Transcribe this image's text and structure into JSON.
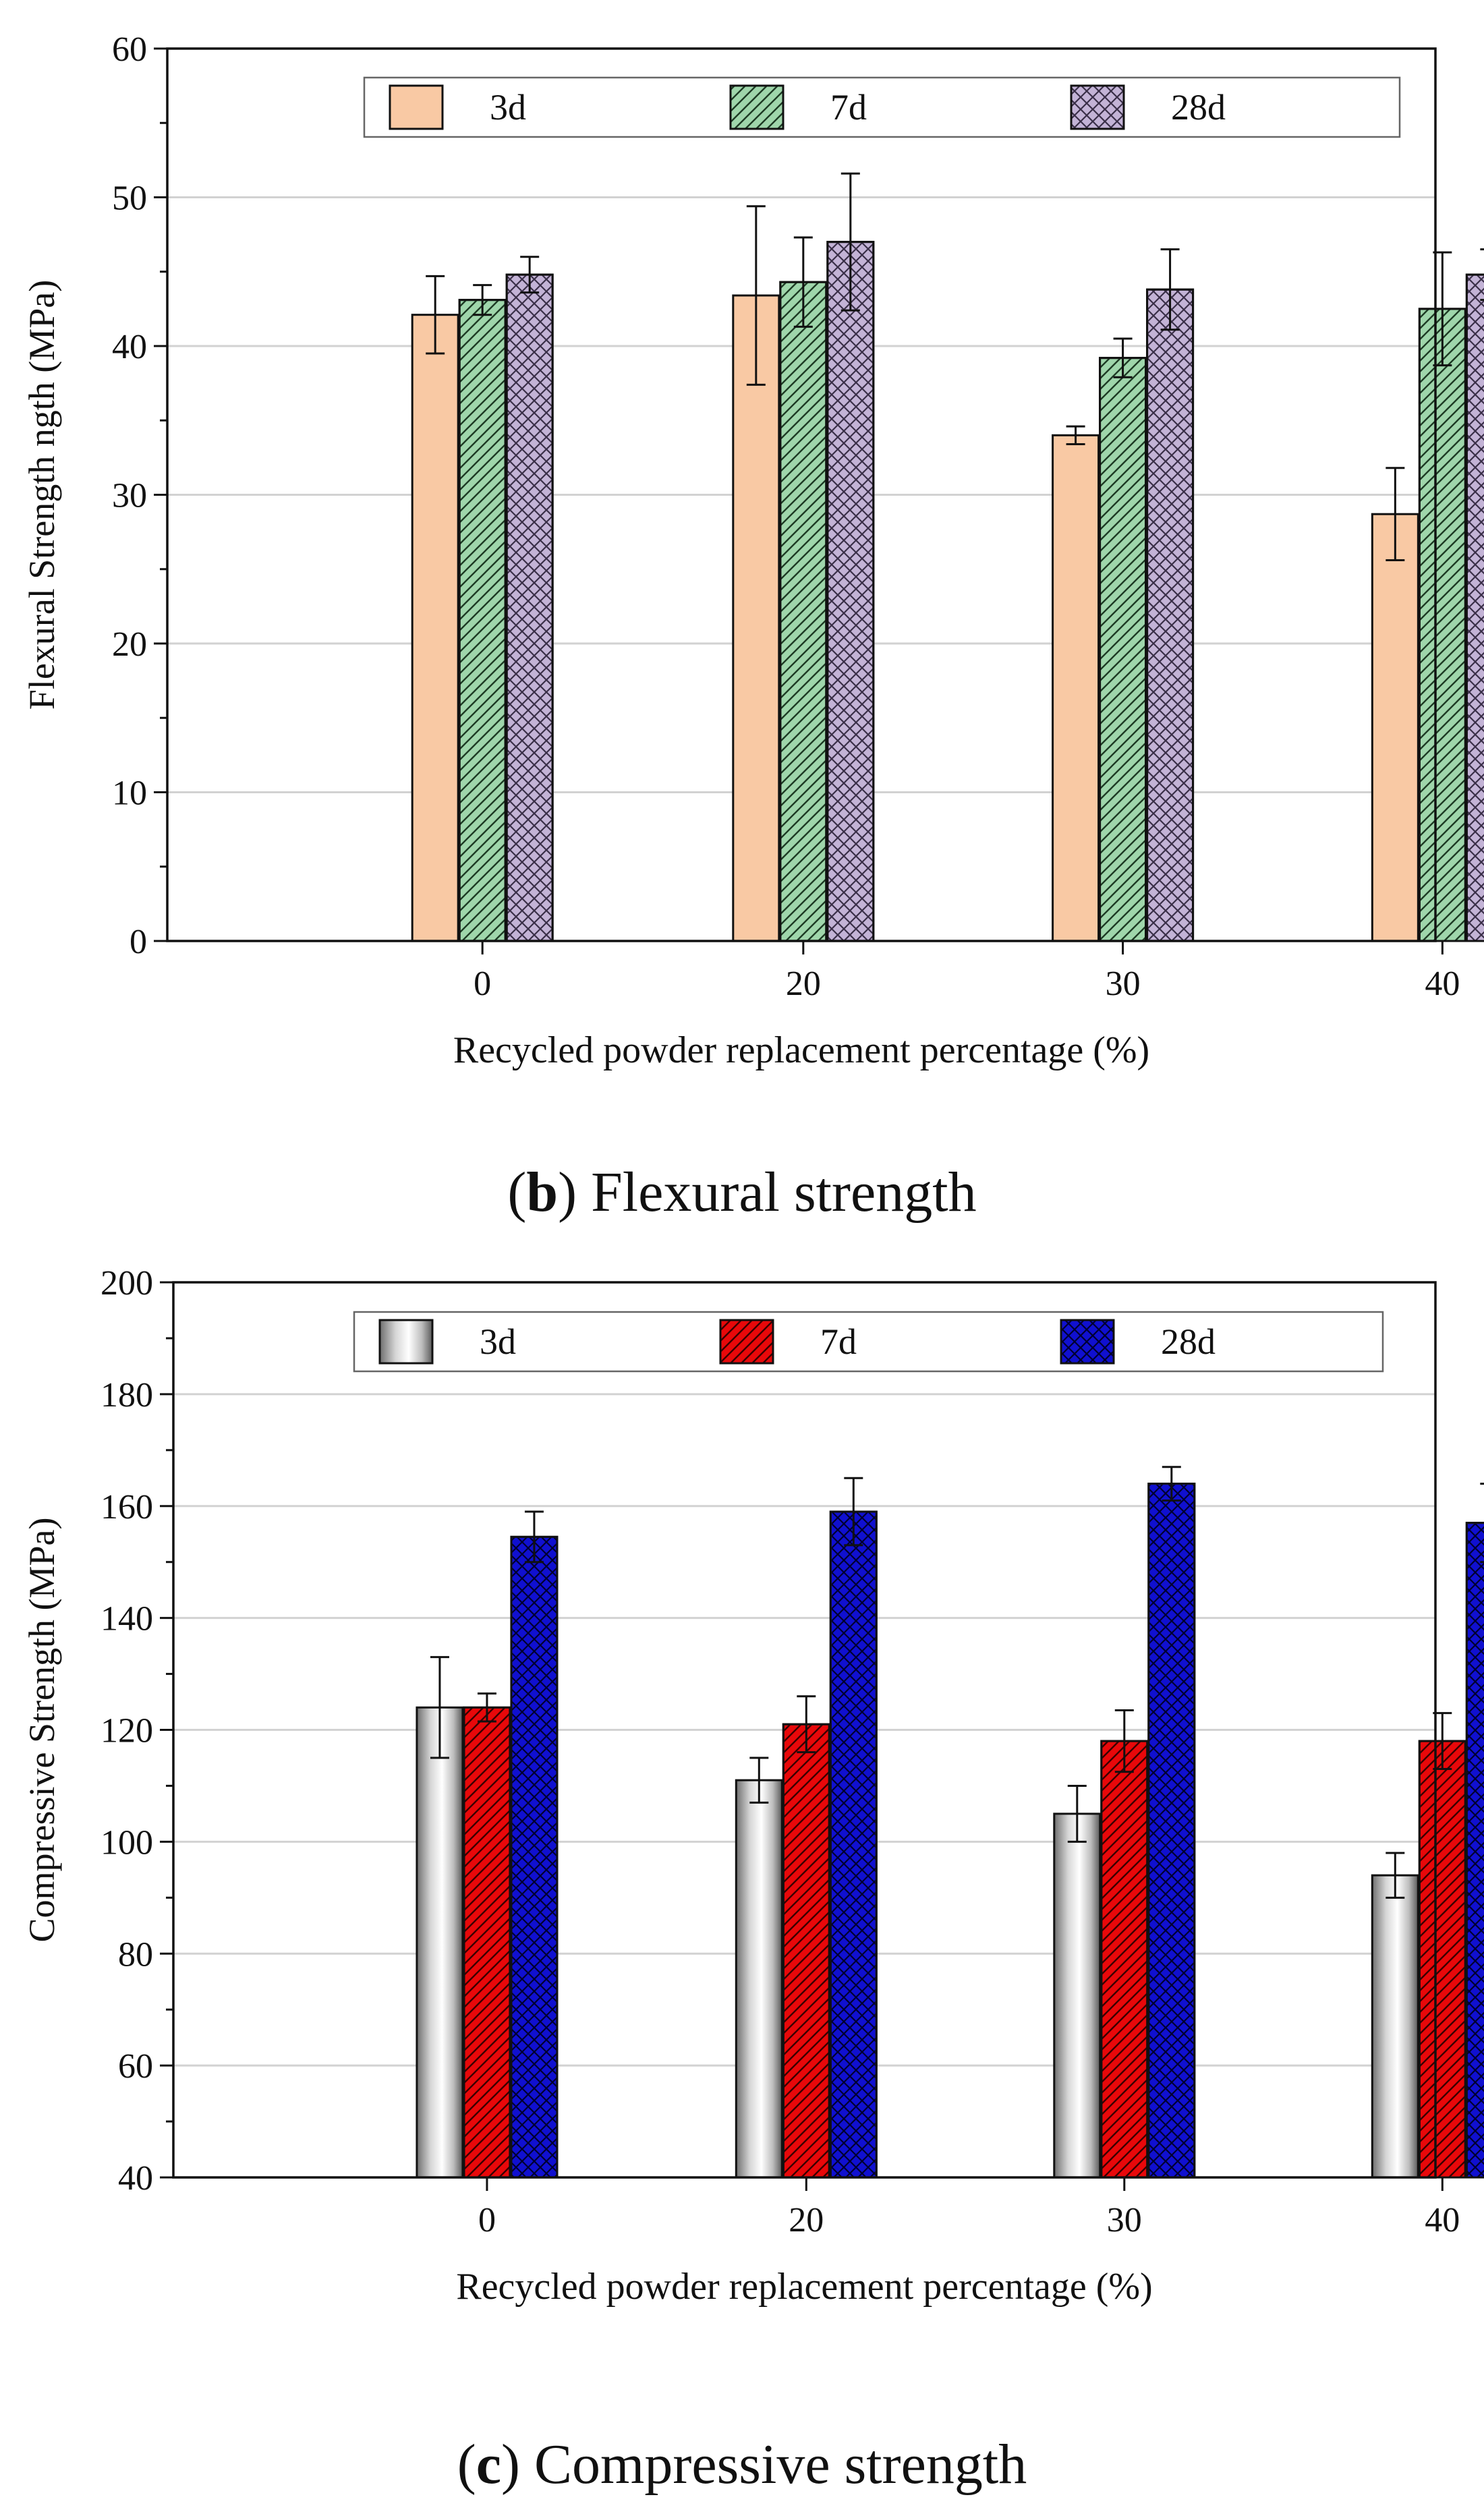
{
  "captions": [
    {
      "label": "b",
      "text": "Flexural strength"
    },
    {
      "label": "c",
      "text": "Compressive strength"
    }
  ],
  "chart_data": [
    {
      "type": "bar",
      "title": "",
      "xlabel": "Recycled powder replacement percentage  (%)",
      "ylabel": "Flexural Strength ngth (MPa)",
      "ylim": [
        0,
        60
      ],
      "yticks": [
        0,
        10,
        20,
        30,
        40,
        50,
        60
      ],
      "grid": true,
      "legend_position": "top",
      "categories": [
        "0",
        "20",
        "30",
        "40"
      ],
      "series": [
        {
          "name": "3d",
          "color": "#f9c9a4",
          "pattern": "none",
          "values": [
            42.1,
            43.4,
            34.0,
            28.7
          ],
          "errors": [
            2.6,
            6.0,
            0.6,
            3.1
          ]
        },
        {
          "name": "7d",
          "color": "#9fd6ab",
          "pattern": "diagonal",
          "values": [
            43.1,
            44.3,
            39.2,
            42.5
          ],
          "errors": [
            1.0,
            3.0,
            1.3,
            3.8
          ]
        },
        {
          "name": "28d",
          "color": "#c3b3d6",
          "pattern": "crosshatch",
          "values": [
            44.8,
            47.0,
            43.8,
            44.8
          ],
          "errors": [
            1.2,
            4.6,
            2.7,
            1.7
          ]
        }
      ]
    },
    {
      "type": "bar",
      "title": "",
      "xlabel": "Recycled powder replacement percentage  (%)",
      "ylabel": "Compressive Strength (MPa)",
      "ylim": [
        40,
        200
      ],
      "yticks": [
        40,
        60,
        80,
        100,
        120,
        140,
        160,
        180,
        200
      ],
      "grid": true,
      "legend_position": "top",
      "categories": [
        "0",
        "20",
        "30",
        "40"
      ],
      "series": [
        {
          "name": "3d",
          "color": "#bdbdbd",
          "pattern": "gradient",
          "values": [
            124.0,
            111.0,
            105.0,
            94.0
          ],
          "errors": [
            9.0,
            4.0,
            5.0,
            4.0
          ]
        },
        {
          "name": "7d",
          "color": "#e8080a",
          "pattern": "diagonal",
          "values": [
            124.0,
            121.0,
            118.0,
            118.0
          ],
          "errors": [
            2.5,
            5.0,
            5.5,
            5.0
          ]
        },
        {
          "name": "28d",
          "color": "#1010d0",
          "pattern": "crosshatch",
          "values": [
            154.5,
            159.0,
            164.0,
            157.0
          ],
          "errors": [
            4.5,
            6.0,
            3.0,
            7.0
          ]
        }
      ]
    }
  ]
}
